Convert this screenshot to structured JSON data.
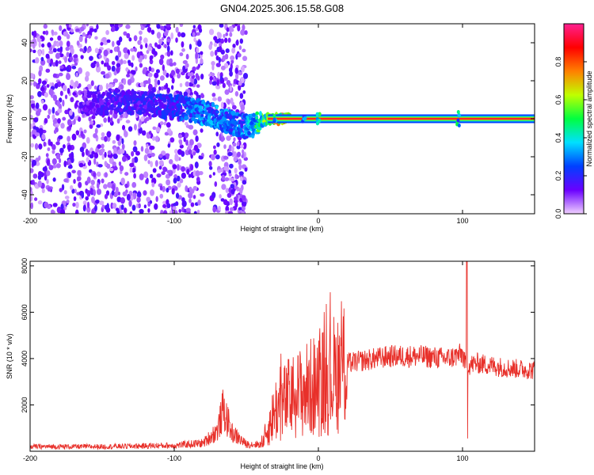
{
  "title": "GN04.2025.306.15.58.G08",
  "chart_data": [
    {
      "type": "heatmap",
      "xlabel": "Height of straight line (km)",
      "ylabel": "Frequency (Hz)",
      "xlim": [
        -200,
        150
      ],
      "ylim": [
        -50,
        50
      ],
      "xticks": [
        -200,
        -100,
        0,
        100
      ],
      "xtick_labels": [
        "-200",
        "-100",
        "0",
        "100"
      ],
      "yticks": [
        -40,
        -20,
        0,
        20,
        40
      ],
      "ytick_labels": [
        "-40",
        "-20",
        "0",
        "20",
        "40"
      ],
      "colorbar": {
        "label": "Normalized spectral amplitude",
        "range": [
          0,
          1
        ],
        "ticks": [
          0.0,
          0.2,
          0.4,
          0.6,
          0.8
        ],
        "tick_labels": [
          "0.0",
          "0.2",
          "0.4",
          "0.6",
          "0.8"
        ],
        "colors": [
          "#f0d0ff",
          "#6a00ff",
          "#0040ff",
          "#00e0ff",
          "#00ff40",
          "#c0ff00",
          "#ff8000",
          "#ff0000",
          "#ff2090"
        ]
      },
      "ridge": {
        "x": [
          -160,
          -140,
          -120,
          -100,
          -90,
          -80,
          -70,
          -60,
          -50,
          -45,
          -40,
          -35,
          -30,
          -20,
          -10,
          0,
          10,
          50,
          95,
          100,
          150
        ],
        "y": [
          8,
          9,
          8,
          6,
          5,
          3,
          1,
          -2,
          -4,
          -4,
          -2,
          0,
          0,
          0,
          0,
          0,
          0,
          0,
          0,
          0,
          0
        ],
        "amplitude": [
          0.15,
          0.2,
          0.2,
          0.25,
          0.3,
          0.35,
          0.35,
          0.3,
          0.35,
          0.45,
          0.55,
          0.6,
          0.75,
          0.8,
          0.85,
          0.9,
          0.9,
          0.9,
          0.9,
          0.9,
          0.9
        ]
      }
    },
    {
      "type": "line",
      "xlabel": "Height of straight line (km)",
      "ylabel": "SNR (10 * v/v)",
      "xlim": [
        -200,
        150
      ],
      "ylim": [
        0,
        8200
      ],
      "xticks": [
        -200,
        -100,
        0,
        100
      ],
      "xtick_labels": [
        "-200",
        "-100",
        "0",
        "100"
      ],
      "yticks": [
        2000,
        4000,
        6000,
        8000
      ],
      "ytick_labels": [
        "2000",
        "4000",
        "6000",
        "8000"
      ],
      "color": "#e8302a",
      "envelope": {
        "x": [
          -200,
          -150,
          -100,
          -80,
          -70,
          -66,
          -60,
          -50,
          -40,
          -35,
          -30,
          -20,
          -10,
          0,
          10,
          20,
          30,
          50,
          70,
          90,
          100,
          102,
          104,
          110,
          130,
          150
        ],
        "y": [
          200,
          200,
          250,
          350,
          900,
          1800,
          800,
          300,
          300,
          900,
          1800,
          2300,
          2600,
          2900,
          3300,
          3800,
          3900,
          4100,
          4100,
          4000,
          4200,
          3700,
          3700,
          3800,
          3600,
          3500
        ]
      },
      "spike": {
        "x": 103,
        "peak": 8200,
        "dip": 550
      }
    }
  ]
}
